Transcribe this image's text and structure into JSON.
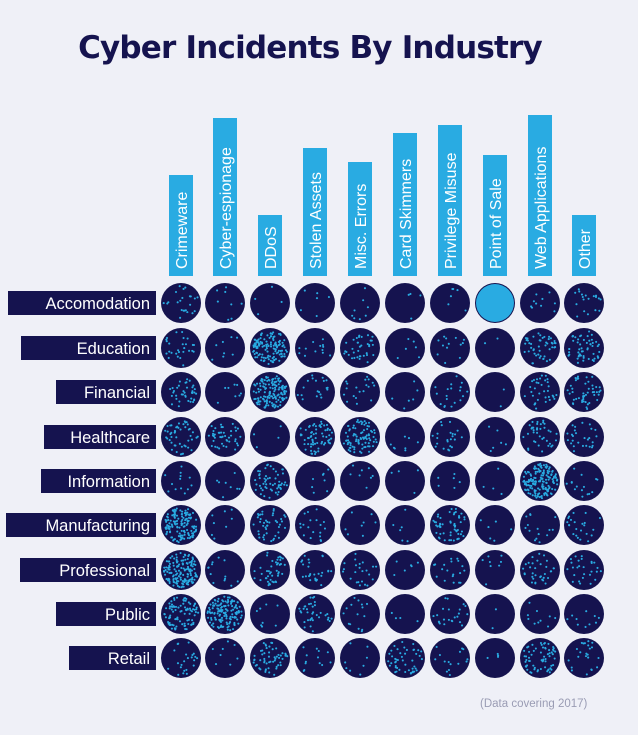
{
  "title": "Cyber Incidents By Industry",
  "footnote": "(Data covering 2017)",
  "colors": {
    "background": "#eff0f7",
    "navy": "#15134f",
    "accent": "#29abe2"
  },
  "chart_data": {
    "type": "heatmap",
    "title": "Cyber Incidents By Industry",
    "legend": "none",
    "columns": [
      "Crimeware",
      "Cyber-espionage",
      "DDoS",
      "Stolen Assets",
      "Misc. Errors",
      "Card Skimmers",
      "Privilege Misuse",
      "Point of Sale",
      "Web Applications",
      "Other"
    ],
    "rows": [
      "Accomodation",
      "Education",
      "Financial",
      "Healthcare",
      "Information",
      "Manufacturing",
      "Professional",
      "Public",
      "Retail"
    ],
    "values": [
      [
        0.1,
        0.03,
        0.01,
        0.02,
        0.03,
        0.01,
        0.02,
        0.95,
        0.04,
        0.08
      ],
      [
        0.12,
        0.03,
        0.6,
        0.05,
        0.16,
        0.02,
        0.05,
        0.0,
        0.22,
        0.25
      ],
      [
        0.17,
        0.03,
        0.65,
        0.08,
        0.08,
        0.02,
        0.08,
        0.0,
        0.15,
        0.22
      ],
      [
        0.22,
        0.2,
        0.01,
        0.3,
        0.4,
        0.03,
        0.1,
        0.02,
        0.17,
        0.12
      ],
      [
        0.05,
        0.03,
        0.25,
        0.03,
        0.03,
        0.01,
        0.02,
        0.01,
        0.75,
        0.06
      ],
      [
        0.65,
        0.03,
        0.2,
        0.08,
        0.03,
        0.02,
        0.25,
        0.02,
        0.06,
        0.1
      ],
      [
        0.75,
        0.05,
        0.2,
        0.12,
        0.1,
        0.02,
        0.08,
        0.03,
        0.15,
        0.12
      ],
      [
        0.42,
        0.65,
        0.03,
        0.16,
        0.06,
        0.01,
        0.1,
        0.0,
        0.04,
        0.04
      ],
      [
        0.1,
        0.03,
        0.25,
        0.05,
        0.03,
        0.22,
        0.06,
        0.01,
        0.3,
        0.1
      ]
    ]
  }
}
